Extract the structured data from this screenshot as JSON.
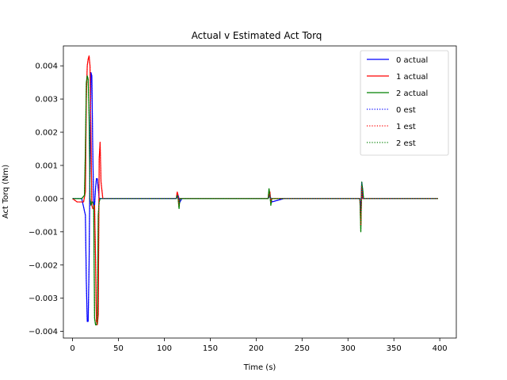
{
  "chart_data": {
    "type": "line",
    "title": "Actual v Estimated Act Torq",
    "xlabel": "Time (s)",
    "ylabel": "Act Torq (Nm)",
    "xlim": [
      -10,
      418
    ],
    "ylim": [
      -0.0042,
      0.0046
    ],
    "xticks": [
      0,
      50,
      100,
      150,
      200,
      250,
      300,
      350,
      400
    ],
    "xtick_labels": [
      "0",
      "50",
      "100",
      "150",
      "200",
      "250",
      "300",
      "350",
      "400"
    ],
    "yticks": [
      -0.004,
      -0.003,
      -0.002,
      -0.001,
      0.0,
      0.001,
      0.002,
      0.003,
      0.004
    ],
    "ytick_labels": [
      "−0.004",
      "−0.003",
      "−0.002",
      "−0.001",
      "0.000",
      "0.001",
      "0.002",
      "0.003",
      "0.004"
    ],
    "grid": false,
    "legend_position": "top-right",
    "series": [
      {
        "name": "0 actual",
        "color": "#0000ff",
        "style": "solid",
        "x": [
          0,
          10,
          14,
          15,
          16,
          17,
          18,
          19,
          20,
          21,
          22,
          23,
          24,
          25,
          26,
          27,
          28,
          29,
          30,
          32,
          35,
          50,
          100,
          113,
          115,
          117,
          119,
          130,
          200,
          213,
          215,
          217,
          230,
          300,
          313,
          314,
          315,
          316,
          317,
          318,
          330,
          398
        ],
        "y": [
          0.0,
          0.0,
          -0.0005,
          -0.0025,
          -0.0037,
          -0.0037,
          -0.002,
          0.001,
          0.0038,
          0.0037,
          0.0015,
          -0.0002,
          -0.0002,
          0.0003,
          0.0006,
          0.0006,
          0.0003,
          0.0,
          0.0,
          0.0,
          0.0,
          0.0,
          0.0,
          0.0,
          0.0001,
          -0.0001,
          0.0,
          0.0,
          0.0,
          0.0,
          0.0001,
          -0.0001,
          0.0,
          0.0,
          0.0,
          -0.0004,
          0.0005,
          0.0,
          0.0,
          0.0,
          0.0,
          0.0
        ]
      },
      {
        "name": "1 actual",
        "color": "#ff0000",
        "style": "solid",
        "x": [
          0,
          5,
          12,
          14,
          15,
          16,
          17,
          18,
          19,
          20,
          21,
          22,
          23,
          24,
          25,
          26,
          27,
          28,
          29,
          30,
          31,
          33,
          36,
          50,
          100,
          113,
          114,
          115,
          116,
          117,
          118,
          130,
          200,
          213,
          215,
          216,
          217,
          230,
          300,
          313,
          314,
          315,
          316,
          317,
          330,
          398
        ],
        "y": [
          0.0,
          -0.0001,
          -0.0001,
          0.0002,
          0.003,
          0.004,
          0.0042,
          0.0043,
          0.004,
          0.002,
          -0.0002,
          -0.0003,
          -0.0003,
          -0.0002,
          -0.0017,
          -0.0037,
          -0.0038,
          -0.0035,
          0.0012,
          0.0017,
          0.0005,
          0.0,
          0.0,
          0.0,
          0.0,
          0.0,
          0.0002,
          0.0001,
          -0.0002,
          0.0,
          0.0,
          0.0,
          0.0,
          0.0,
          0.0002,
          -0.0001,
          0.0,
          0.0,
          0.0,
          0.0,
          -0.0008,
          0.0004,
          0.0,
          0.0,
          0.0,
          0.0
        ]
      },
      {
        "name": "2 actual",
        "color": "#008000",
        "style": "solid",
        "x": [
          0,
          10,
          13,
          14,
          15,
          16,
          17,
          18,
          19,
          20,
          21,
          22,
          23,
          24,
          25,
          26,
          27,
          28,
          29,
          30,
          33,
          50,
          100,
          113,
          114,
          115,
          116,
          117,
          130,
          200,
          213,
          214,
          215,
          216,
          217,
          230,
          300,
          313,
          314,
          315,
          316,
          317,
          318,
          330,
          398
        ],
        "y": [
          0.0,
          0.0,
          0.0001,
          0.0015,
          0.0035,
          0.0037,
          0.0036,
          0.0025,
          0.0,
          -0.0002,
          -0.0001,
          -0.0001,
          -0.0002,
          -0.0036,
          -0.0038,
          -0.0038,
          -0.0037,
          -0.0005,
          -0.0001,
          0.0,
          0.0,
          0.0,
          0.0,
          0.0,
          0.0001,
          0.0,
          -0.0003,
          0.0,
          0.0,
          0.0,
          0.0,
          0.0003,
          0.0001,
          -0.0002,
          0.0,
          0.0,
          0.0,
          0.0,
          -0.001,
          0.0005,
          0.0003,
          0.0,
          0.0,
          0.0,
          0.0
        ]
      },
      {
        "name": "0 est",
        "color": "#0000ff",
        "style": "dotted",
        "x": [
          0,
          10,
          14,
          15,
          16,
          17,
          18,
          19,
          20,
          21,
          22,
          23,
          24,
          25,
          26,
          27,
          28,
          29,
          30,
          32,
          35,
          50,
          100,
          113,
          115,
          117,
          119,
          130,
          200,
          213,
          215,
          217,
          230,
          300,
          313,
          314,
          315,
          316,
          317,
          318,
          330,
          398
        ],
        "y": [
          0.0,
          0.0,
          -0.0005,
          -0.0025,
          -0.0037,
          -0.0037,
          -0.002,
          0.001,
          0.0038,
          0.0037,
          0.0015,
          -0.0002,
          -0.0002,
          0.0003,
          0.0006,
          0.0006,
          0.0003,
          0.0,
          0.0,
          0.0,
          0.0,
          0.0,
          0.0,
          0.0,
          0.0001,
          -0.0001,
          0.0,
          0.0,
          0.0,
          0.0,
          0.0001,
          -0.0001,
          0.0,
          0.0,
          0.0,
          -0.0004,
          0.0005,
          0.0,
          0.0,
          0.0,
          0.0,
          0.0
        ]
      },
      {
        "name": "1 est",
        "color": "#ff0000",
        "style": "dotted",
        "x": [
          0,
          5,
          12,
          14,
          15,
          16,
          17,
          18,
          19,
          20,
          21,
          22,
          23,
          24,
          25,
          26,
          27,
          28,
          29,
          30,
          31,
          33,
          36,
          50,
          100,
          113,
          114,
          115,
          116,
          117,
          118,
          130,
          200,
          213,
          215,
          216,
          217,
          230,
          300,
          313,
          314,
          315,
          316,
          317,
          330,
          398
        ],
        "y": [
          0.0,
          -0.0001,
          -0.0001,
          0.0002,
          0.003,
          0.004,
          0.0042,
          0.0043,
          0.004,
          0.002,
          -0.0002,
          -0.0003,
          -0.0003,
          -0.0002,
          -0.0017,
          -0.0037,
          -0.0038,
          -0.0035,
          0.0012,
          0.0017,
          0.0005,
          0.0,
          0.0,
          0.0,
          0.0,
          0.0,
          0.0002,
          0.0001,
          -0.0002,
          0.0,
          0.0,
          0.0,
          0.0,
          0.0,
          0.0002,
          -0.0001,
          0.0,
          0.0,
          0.0,
          0.0,
          -0.0008,
          0.0004,
          0.0,
          0.0,
          0.0,
          0.0
        ]
      },
      {
        "name": "2 est",
        "color": "#008000",
        "style": "dotted",
        "x": [
          0,
          10,
          13,
          14,
          15,
          16,
          17,
          18,
          19,
          20,
          21,
          22,
          23,
          24,
          25,
          26,
          27,
          28,
          29,
          30,
          33,
          50,
          100,
          113,
          114,
          115,
          116,
          117,
          130,
          200,
          213,
          214,
          215,
          216,
          217,
          230,
          300,
          313,
          314,
          315,
          316,
          317,
          318,
          330,
          398
        ],
        "y": [
          0.0,
          0.0,
          0.0001,
          0.0015,
          0.0035,
          0.0037,
          0.0036,
          0.0025,
          0.0,
          -0.0002,
          -0.0001,
          -0.0001,
          -0.0002,
          -0.0036,
          -0.0038,
          -0.0038,
          -0.0037,
          -0.0005,
          -0.0001,
          0.0,
          0.0,
          0.0,
          0.0,
          0.0,
          0.0001,
          0.0,
          -0.0003,
          0.0,
          0.0,
          0.0,
          0.0,
          0.0003,
          0.0001,
          -0.0002,
          0.0,
          0.0,
          0.0,
          0.0,
          -0.001,
          0.0005,
          0.0003,
          0.0,
          0.0,
          0.0,
          0.0
        ]
      }
    ]
  }
}
